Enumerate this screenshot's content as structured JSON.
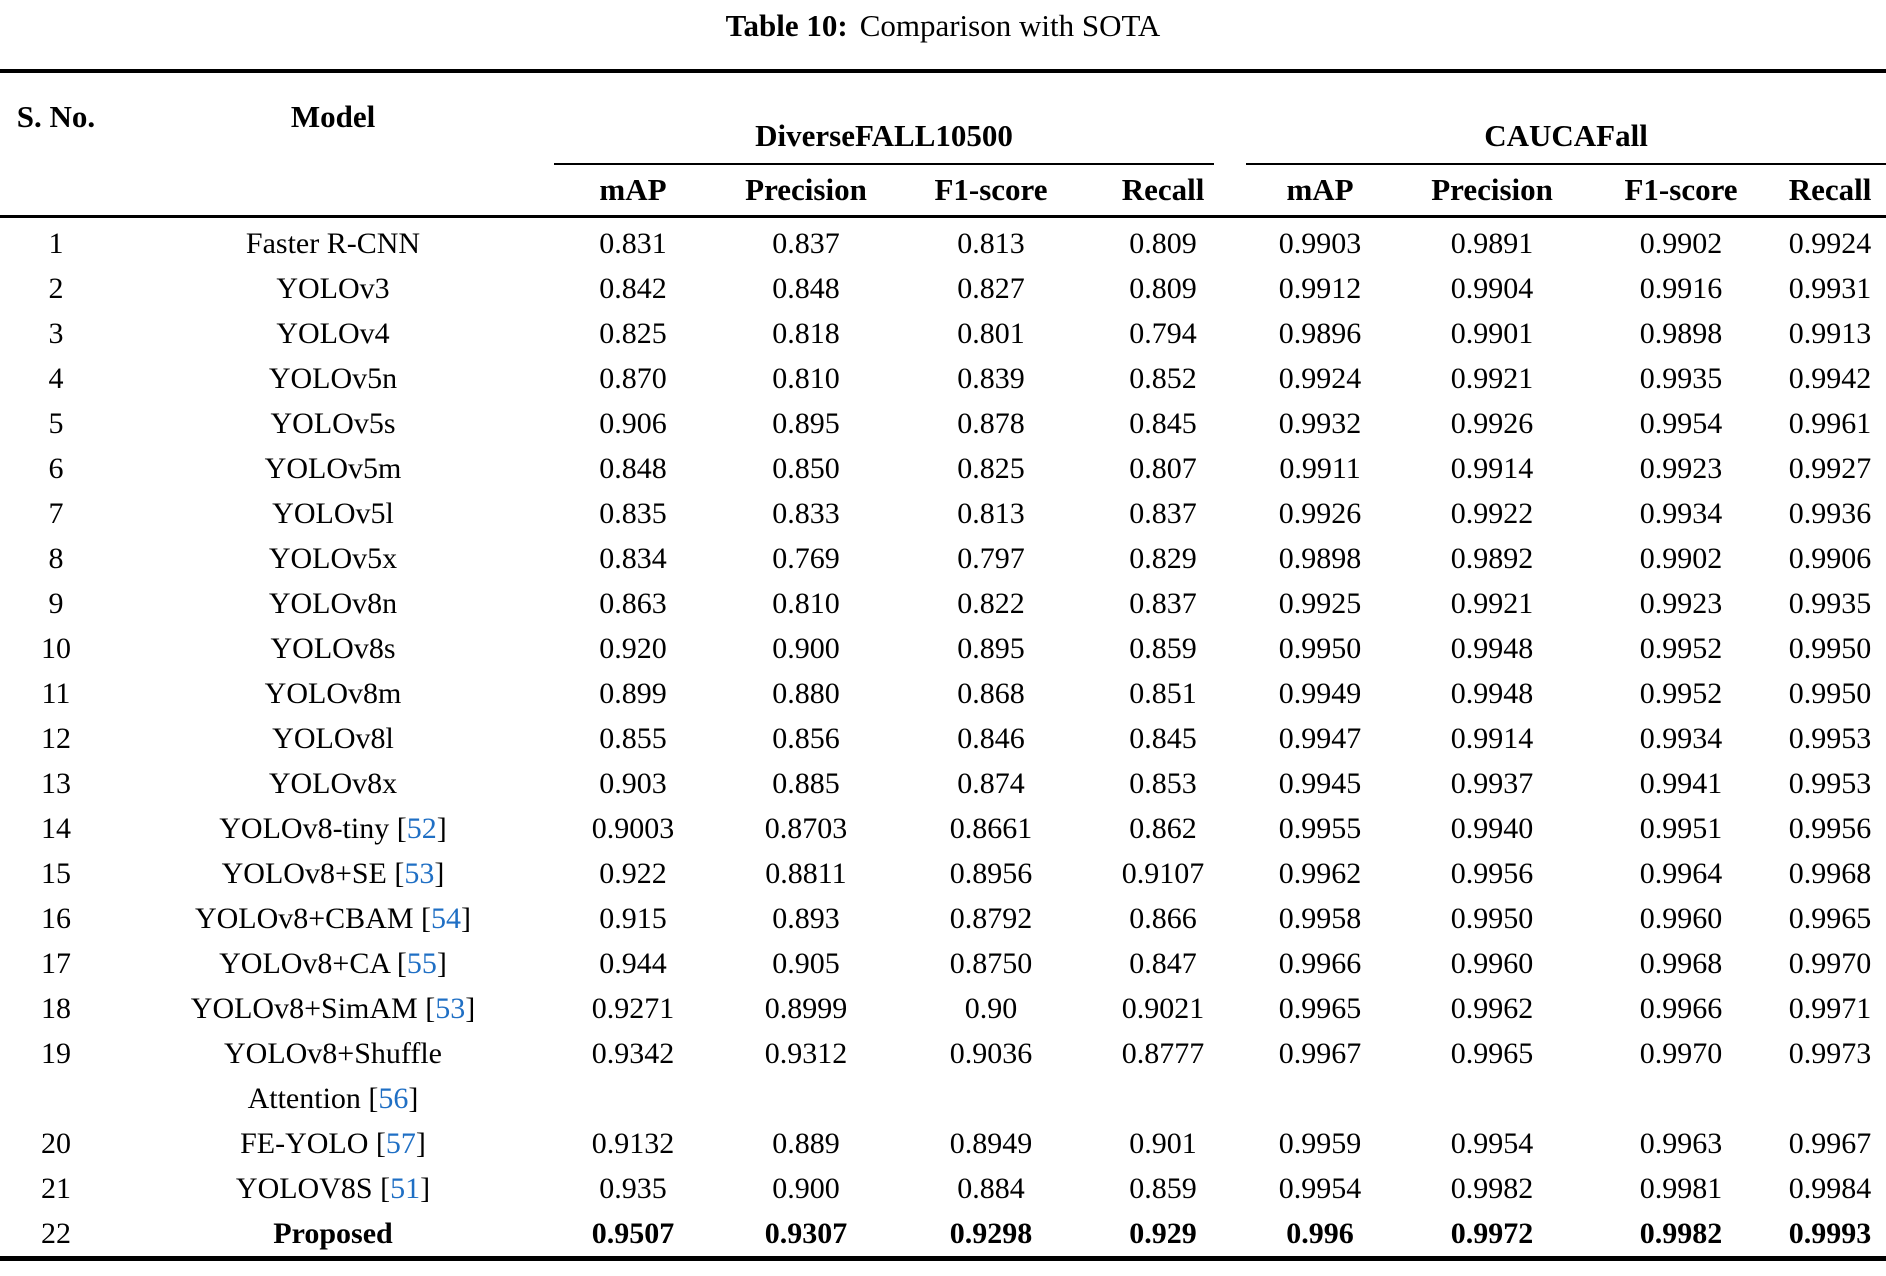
{
  "caption": {
    "label": "Table 10:",
    "text": "Comparison with SOTA"
  },
  "colors": {
    "citation": "#1f6fc4",
    "text": "#000000",
    "background": "#ffffff"
  },
  "table": {
    "columns": [
      "S. No.",
      "Model"
    ],
    "groups": [
      {
        "label": "DiverseFALL10500",
        "metrics": [
          "mAP",
          "Precision",
          "F1-score",
          "Recall"
        ]
      },
      {
        "label": "CAUCAFall",
        "metrics": [
          "mAP",
          "Precision",
          "F1-score",
          "Recall"
        ]
      }
    ],
    "rows": [
      {
        "no": "1",
        "model": "Faster R-CNN",
        "cite": null,
        "d": [
          "0.831",
          "0.837",
          "0.813",
          "0.809"
        ],
        "c": [
          "0.9903",
          "0.9891",
          "0.9902",
          "0.9924"
        ],
        "bold": false
      },
      {
        "no": "2",
        "model": "YOLOv3",
        "cite": null,
        "d": [
          "0.842",
          "0.848",
          "0.827",
          "0.809"
        ],
        "c": [
          "0.9912",
          "0.9904",
          "0.9916",
          "0.9931"
        ],
        "bold": false
      },
      {
        "no": "3",
        "model": "YOLOv4",
        "cite": null,
        "d": [
          "0.825",
          "0.818",
          "0.801",
          "0.794"
        ],
        "c": [
          "0.9896",
          "0.9901",
          "0.9898",
          "0.9913"
        ],
        "bold": false
      },
      {
        "no": "4",
        "model": "YOLOv5n",
        "cite": null,
        "d": [
          "0.870",
          "0.810",
          "0.839",
          "0.852"
        ],
        "c": [
          "0.9924",
          "0.9921",
          "0.9935",
          "0.9942"
        ],
        "bold": false
      },
      {
        "no": "5",
        "model": "YOLOv5s",
        "cite": null,
        "d": [
          "0.906",
          "0.895",
          "0.878",
          "0.845"
        ],
        "c": [
          "0.9932",
          "0.9926",
          "0.9954",
          "0.9961"
        ],
        "bold": false
      },
      {
        "no": "6",
        "model": "YOLOv5m",
        "cite": null,
        "d": [
          "0.848",
          "0.850",
          "0.825",
          "0.807"
        ],
        "c": [
          "0.9911",
          "0.9914",
          "0.9923",
          "0.9927"
        ],
        "bold": false
      },
      {
        "no": "7",
        "model": "YOLOv5l",
        "cite": null,
        "d": [
          "0.835",
          "0.833",
          "0.813",
          "0.837"
        ],
        "c": [
          "0.9926",
          "0.9922",
          "0.9934",
          "0.9936"
        ],
        "bold": false
      },
      {
        "no": "8",
        "model": "YOLOv5x",
        "cite": null,
        "d": [
          "0.834",
          "0.769",
          "0.797",
          "0.829"
        ],
        "c": [
          "0.9898",
          "0.9892",
          "0.9902",
          "0.9906"
        ],
        "bold": false
      },
      {
        "no": "9",
        "model": "YOLOv8n",
        "cite": null,
        "d": [
          "0.863",
          "0.810",
          "0.822",
          "0.837"
        ],
        "c": [
          "0.9925",
          "0.9921",
          "0.9923",
          "0.9935"
        ],
        "bold": false
      },
      {
        "no": "10",
        "model": "YOLOv8s",
        "cite": null,
        "d": [
          "0.920",
          "0.900",
          "0.895",
          "0.859"
        ],
        "c": [
          "0.9950",
          "0.9948",
          "0.9952",
          "0.9950"
        ],
        "bold": false
      },
      {
        "no": "11",
        "model": "YOLOv8m",
        "cite": null,
        "d": [
          "0.899",
          "0.880",
          "0.868",
          "0.851"
        ],
        "c": [
          "0.9949",
          "0.9948",
          "0.9952",
          "0.9950"
        ],
        "bold": false
      },
      {
        "no": "12",
        "model": "YOLOv8l",
        "cite": null,
        "d": [
          "0.855",
          "0.856",
          "0.846",
          "0.845"
        ],
        "c": [
          "0.9947",
          "0.9914",
          "0.9934",
          "0.9953"
        ],
        "bold": false
      },
      {
        "no": "13",
        "model": "YOLOv8x",
        "cite": null,
        "d": [
          "0.903",
          "0.885",
          "0.874",
          "0.853"
        ],
        "c": [
          "0.9945",
          "0.9937",
          "0.9941",
          "0.9953"
        ],
        "bold": false
      },
      {
        "no": "14",
        "model": "YOLOv8-tiny",
        "cite": "52",
        "d": [
          "0.9003",
          "0.8703",
          "0.8661",
          "0.862"
        ],
        "c": [
          "0.9955",
          "0.9940",
          "0.9951",
          "0.9956"
        ],
        "bold": false
      },
      {
        "no": "15",
        "model": "YOLOv8+SE",
        "cite": "53",
        "d": [
          "0.922",
          "0.8811",
          "0.8956",
          "0.9107"
        ],
        "c": [
          "0.9962",
          "0.9956",
          "0.9964",
          "0.9968"
        ],
        "bold": false
      },
      {
        "no": "16",
        "model": "YOLOv8+CBAM",
        "cite": "54",
        "d": [
          "0.915",
          "0.893",
          "0.8792",
          "0.866"
        ],
        "c": [
          "0.9958",
          "0.9950",
          "0.9960",
          "0.9965"
        ],
        "bold": false
      },
      {
        "no": "17",
        "model": "YOLOv8+CA",
        "cite": "55",
        "d": [
          "0.944",
          "0.905",
          "0.8750",
          "0.847"
        ],
        "c": [
          "0.9966",
          "0.9960",
          "0.9968",
          "0.9970"
        ],
        "bold": false
      },
      {
        "no": "18",
        "model": "YOLOv8+SimAM",
        "cite": "53",
        "d": [
          "0.9271",
          "0.8999",
          "0.90",
          "0.9021"
        ],
        "c": [
          "0.9965",
          "0.9962",
          "0.9966",
          "0.9971"
        ],
        "bold": false
      },
      {
        "no": "19",
        "model": "YOLOv8+Shuffle",
        "model_line2": "Attention",
        "cite": "56",
        "d": [
          "0.9342",
          "0.9312",
          "0.9036",
          "0.8777"
        ],
        "c": [
          "0.9967",
          "0.9965",
          "0.9970",
          "0.9973"
        ],
        "bold": false
      },
      {
        "no": "20",
        "model": "FE-YOLO",
        "cite": "57",
        "d": [
          "0.9132",
          "0.889",
          "0.8949",
          "0.901"
        ],
        "c": [
          "0.9959",
          "0.9954",
          "0.9963",
          "0.9967"
        ],
        "bold": false
      },
      {
        "no": "21",
        "model": "YOLOV8S",
        "cite": "51",
        "d": [
          "0.935",
          "0.900",
          "0.884",
          "0.859"
        ],
        "c": [
          "0.9954",
          "0.9982",
          "0.9981",
          "0.9984"
        ],
        "bold": false
      },
      {
        "no": "22",
        "model": "Proposed",
        "cite": null,
        "d": [
          "0.9507",
          "0.9307",
          "0.9298",
          "0.929"
        ],
        "c": [
          "0.996",
          "0.9972",
          "0.9982",
          "0.9993"
        ],
        "bold": true
      }
    ]
  }
}
